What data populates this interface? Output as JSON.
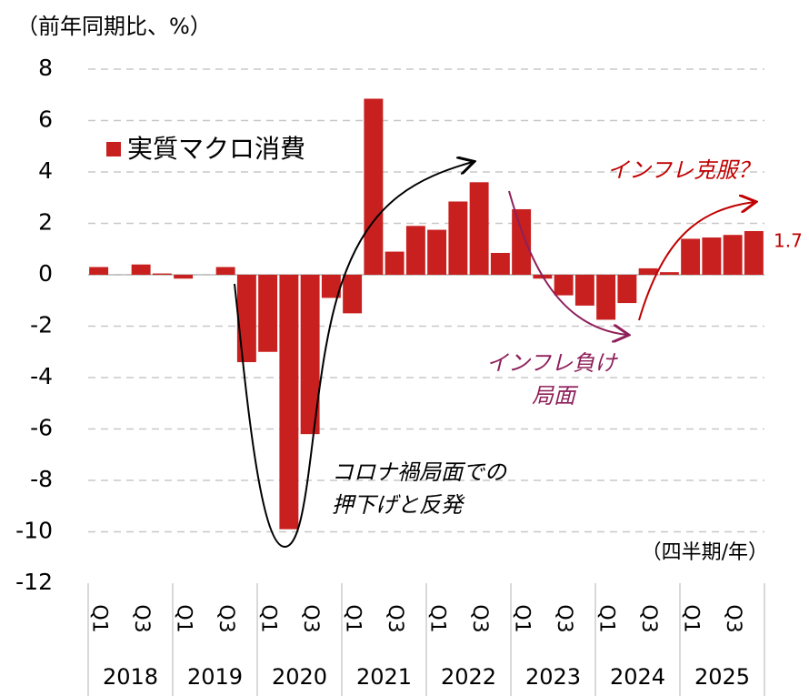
{
  "chart_data": {
    "type": "bar",
    "y_axis_label": "（前年同期比、%）",
    "x_axis_label": "（四半期/年）",
    "categories": [
      "Q1",
      null,
      "Q3",
      null,
      "Q1",
      null,
      "Q3",
      null,
      "Q1",
      null,
      "Q3",
      null,
      "Q1",
      null,
      "Q3",
      null,
      "Q1",
      null,
      "Q3",
      null,
      "Q1",
      null,
      "Q3",
      null,
      "Q1",
      null,
      "Q3",
      null,
      "Q1",
      null,
      "Q3",
      null
    ],
    "year_groups": [
      "2018",
      "2019",
      "2020",
      "2021",
      "2022",
      "2023",
      "2024",
      "2025"
    ],
    "series": [
      {
        "name": "実質マクロ消費",
        "color": "#c8201f",
        "values": [
          0.3,
          0.0,
          0.4,
          0.05,
          -0.15,
          0.0,
          0.3,
          -3.4,
          -3.0,
          -9.9,
          -6.2,
          -0.9,
          -1.5,
          6.85,
          0.9,
          1.9,
          1.75,
          2.85,
          3.6,
          0.85,
          2.55,
          -0.15,
          -0.8,
          -1.2,
          -1.75,
          -1.1,
          0.25,
          0.1,
          1.4,
          1.45,
          1.55,
          1.7
        ]
      }
    ],
    "labeled_point": 31,
    "ylim": [
      -12,
      8
    ],
    "yticks": [
      -12,
      -10,
      -8,
      -6,
      -4,
      -2,
      0,
      2,
      4,
      6,
      8
    ],
    "grid": true,
    "annotations": [
      {
        "lines": [
          "コロナ禍局面での",
          "押下げと反発"
        ]
      },
      {
        "lines": [
          "インフレ負け",
          "局面"
        ]
      },
      {
        "lines": [
          "インフレ克服？"
        ]
      }
    ]
  }
}
